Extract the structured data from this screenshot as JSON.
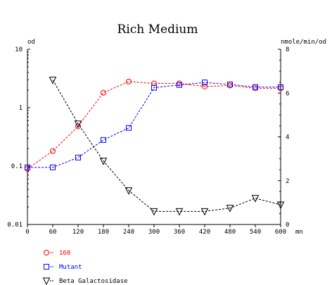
{
  "chart_data": {
    "type": "line",
    "title": "Rich Medium",
    "x_unit": "mn",
    "x": [
      0,
      60,
      120,
      180,
      240,
      300,
      360,
      420,
      480,
      540,
      600
    ],
    "x_ticks": [
      "0",
      "60",
      "120",
      "180",
      "240",
      "300",
      "360",
      "420",
      "480",
      "540",
      "600"
    ],
    "xlim": [
      0,
      600
    ],
    "y_left": {
      "label": "od",
      "scale": "log",
      "lim": [
        0.01,
        10
      ],
      "ticks": [
        "0.01",
        "0.1",
        "1",
        "10"
      ]
    },
    "y_right": {
      "label": "nmole/min/od",
      "scale": "linear",
      "lim": [
        0,
        8
      ],
      "ticks": [
        "0",
        "2",
        "4",
        "6",
        "8"
      ]
    },
    "series": [
      {
        "name": "168",
        "axis": "left",
        "marker": "circle",
        "color": "#ff0000",
        "values": [
          0.09,
          0.18,
          0.48,
          1.8,
          2.8,
          2.6,
          2.6,
          2.3,
          2.4,
          2.15,
          2.15
        ]
      },
      {
        "name": "Mutant",
        "axis": "left",
        "marker": "square",
        "color": "#0000ff",
        "values": [
          0.095,
          0.095,
          0.14,
          0.28,
          0.45,
          2.2,
          2.45,
          2.7,
          2.5,
          2.25,
          2.25
        ]
      },
      {
        "name": "Beta Galactosidase",
        "axis": "right",
        "marker": "triangle-down",
        "color": "#000000",
        "values": [
          null,
          6.6,
          4.6,
          2.9,
          1.55,
          0.6,
          0.6,
          0.6,
          0.75,
          1.2,
          0.9
        ]
      }
    ],
    "grid": false,
    "legend_position": "bottom-left"
  }
}
